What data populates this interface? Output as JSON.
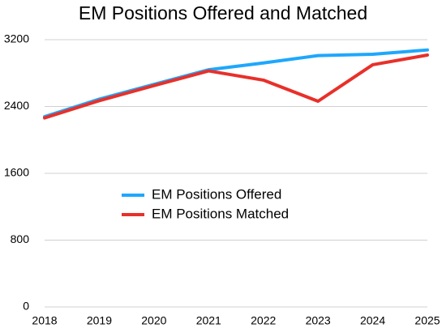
{
  "chart_data": {
    "type": "line",
    "title": "EM Positions Offered and Matched",
    "categories": [
      "2018",
      "2019",
      "2020",
      "2021",
      "2022",
      "2023",
      "2024",
      "2025"
    ],
    "series": [
      {
        "name": "EM Positions Offered",
        "color": "#1ea7fd",
        "values": [
          2278,
          2488,
          2665,
          2840,
          2921,
          3010,
          3026,
          3077
        ]
      },
      {
        "name": "EM Positions Matched",
        "color": "#e8302a",
        "values": [
          2263,
          2470,
          2650,
          2826,
          2716,
          2463,
          2900,
          3016
        ]
      }
    ],
    "ylim": [
      0,
      3200
    ],
    "yticks": [
      0,
      800,
      1600,
      2400,
      3200
    ],
    "grid": true
  }
}
